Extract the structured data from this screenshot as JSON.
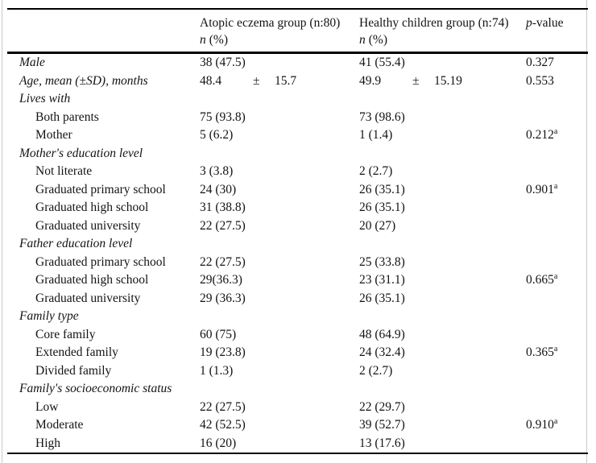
{
  "page": {
    "frame_color": "#c9c9c9",
    "rule_color": "#000000",
    "text_color": "#131313"
  },
  "table": {
    "header": {
      "col2_line1": "Atopic eczema group (n:80)",
      "col3_line1": "Healthy children group (n:74)",
      "n_label": "n",
      "pct_label": "(%)",
      "p_italic": "p",
      "p_rest": "-value"
    },
    "rows": [
      {
        "label": "Male",
        "italic": true,
        "c1": "38 (47.5)",
        "c2": "41 (55.4)",
        "p": "0.327"
      },
      {
        "label": "Age, mean (±SD), months",
        "italic": true,
        "age": true,
        "c1": [
          "48.4",
          "±",
          "15.7"
        ],
        "c2": [
          "49.9",
          "±",
          "15.19"
        ],
        "p": "0.553"
      },
      {
        "label": "Lives with",
        "italic": true
      },
      {
        "label": "Both parents",
        "indent": true,
        "c1": "75 (93.8)",
        "c2": "73 (98.6)"
      },
      {
        "label": "Mother",
        "indent": true,
        "c1": "5 (6.2)",
        "c2": "1 (1.4)",
        "p": "0.212",
        "p_sup": "a"
      },
      {
        "label": "Mother's education level",
        "italic": true
      },
      {
        "label": "Not literate",
        "indent": true,
        "c1": "3 (3.8)",
        "c2": "2 (2.7)"
      },
      {
        "label": "Graduated primary school",
        "indent": true,
        "c1": "24 (30)",
        "c2": "26 (35.1)",
        "p": "0.901",
        "p_sup": "a"
      },
      {
        "label": "Graduated high school",
        "indent": true,
        "c1": "31 (38.8)",
        "c2": "26 (35.1)"
      },
      {
        "label": "Graduated university",
        "indent": true,
        "c1": "22 (27.5)",
        "c2": "20 (27)"
      },
      {
        "label": "Father education level",
        "italic": true
      },
      {
        "label": "Graduated primary school",
        "indent": true,
        "c1": "22 (27.5)",
        "c2": "25 (33.8)"
      },
      {
        "label": "Graduated high school",
        "indent": true,
        "c1": "29(36.3)",
        "c2": "23 (31.1)",
        "p": "0.665",
        "p_sup": "a"
      },
      {
        "label": "Graduated university",
        "indent": true,
        "c1": "29 (36.3)",
        "c2": "26 (35.1)"
      },
      {
        "label": "Family type",
        "italic": true
      },
      {
        "label": "Core family",
        "indent": true,
        "c1": "60 (75)",
        "c2": "48 (64.9)"
      },
      {
        "label": "Extended family",
        "indent": true,
        "c1": "19 (23.8)",
        "c2": "24 (32.4)",
        "p": "0.365",
        "p_sup": "a"
      },
      {
        "label": "Divided family",
        "indent": true,
        "c1": "1 (1.3)",
        "c2": "2 (2.7)"
      },
      {
        "label": "Family's socioeconomic status",
        "italic": true
      },
      {
        "label": "Low",
        "indent": true,
        "c1": "22 (27.5)",
        "c2": "22 (29.7)"
      },
      {
        "label": "Moderate",
        "indent": true,
        "c1": "42 (52.5)",
        "c2": "39 (52.7)",
        "p": "0.910",
        "p_sup": "a"
      },
      {
        "label": "High",
        "indent": true,
        "c1": "16 (20)",
        "c2": "13 (17.6)"
      }
    ]
  }
}
